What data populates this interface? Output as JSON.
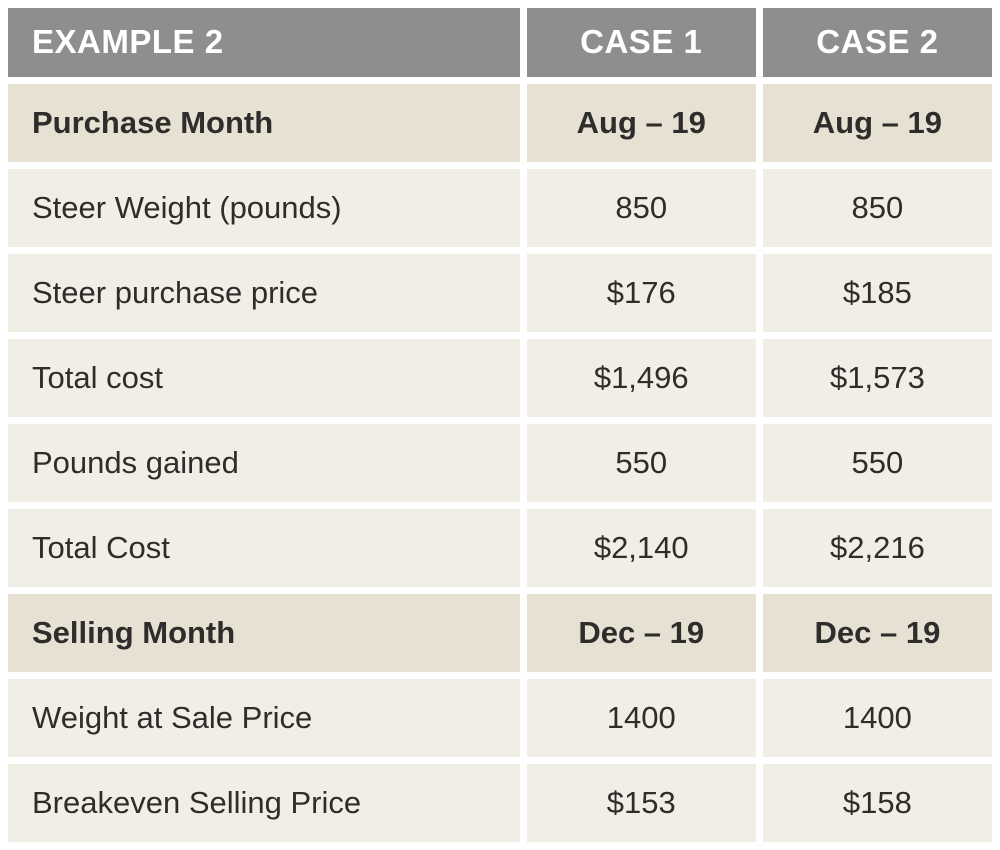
{
  "table": {
    "header": {
      "title": "EXAMPLE 2",
      "case1": "CASE 1",
      "case2": "CASE 2"
    },
    "rows": [
      {
        "label": "Purchase Month",
        "case1": "Aug – 19",
        "case2": "Aug – 19",
        "emphasis": true
      },
      {
        "label": "Steer Weight (pounds)",
        "case1": "850",
        "case2": "850",
        "emphasis": false
      },
      {
        "label": "Steer purchase price",
        "case1": "$176",
        "case2": "$185",
        "emphasis": false
      },
      {
        "label": "Total cost",
        "case1": "$1,496",
        "case2": "$1,573",
        "emphasis": false
      },
      {
        "label": "Pounds gained",
        "case1": "550",
        "case2": "550",
        "emphasis": false
      },
      {
        "label": "Total Cost",
        "case1": "$2,140",
        "case2": "$2,216",
        "emphasis": false
      },
      {
        "label": "Selling Month",
        "case1": "Dec – 19",
        "case2": "Dec – 19",
        "emphasis": true
      },
      {
        "label": "Weight at Sale Price",
        "case1": "1400",
        "case2": "1400",
        "emphasis": false
      },
      {
        "label": "Breakeven Selling Price",
        "case1": "$153",
        "case2": "$158",
        "emphasis": false
      }
    ]
  },
  "chart_data": {
    "type": "table",
    "title": "EXAMPLE 2",
    "columns": [
      "EXAMPLE 2",
      "CASE 1",
      "CASE 2"
    ],
    "rows": [
      [
        "Purchase Month",
        "Aug – 19",
        "Aug – 19"
      ],
      [
        "Steer Weight (pounds)",
        850,
        850
      ],
      [
        "Steer purchase price",
        176,
        185
      ],
      [
        "Total cost",
        1496,
        1573
      ],
      [
        "Pounds gained",
        550,
        550
      ],
      [
        "Total Cost",
        2140,
        2216
      ],
      [
        "Selling Month",
        "Dec – 19",
        "Dec – 19"
      ],
      [
        "Weight at Sale Price",
        1400,
        1400
      ],
      [
        "Breakeven Selling Price",
        153,
        158
      ]
    ],
    "notes": "Currency values shown with $ sign and comma separators; month rows and header are emphasized"
  },
  "colors": {
    "header_bg": "#8e8e8c",
    "header_text": "#ffffff",
    "row_bg": "#f1efe5",
    "emphasis_row_bg": "#e6e1d2",
    "text": "#2e2d2c",
    "page_bg": "#ffffff"
  }
}
